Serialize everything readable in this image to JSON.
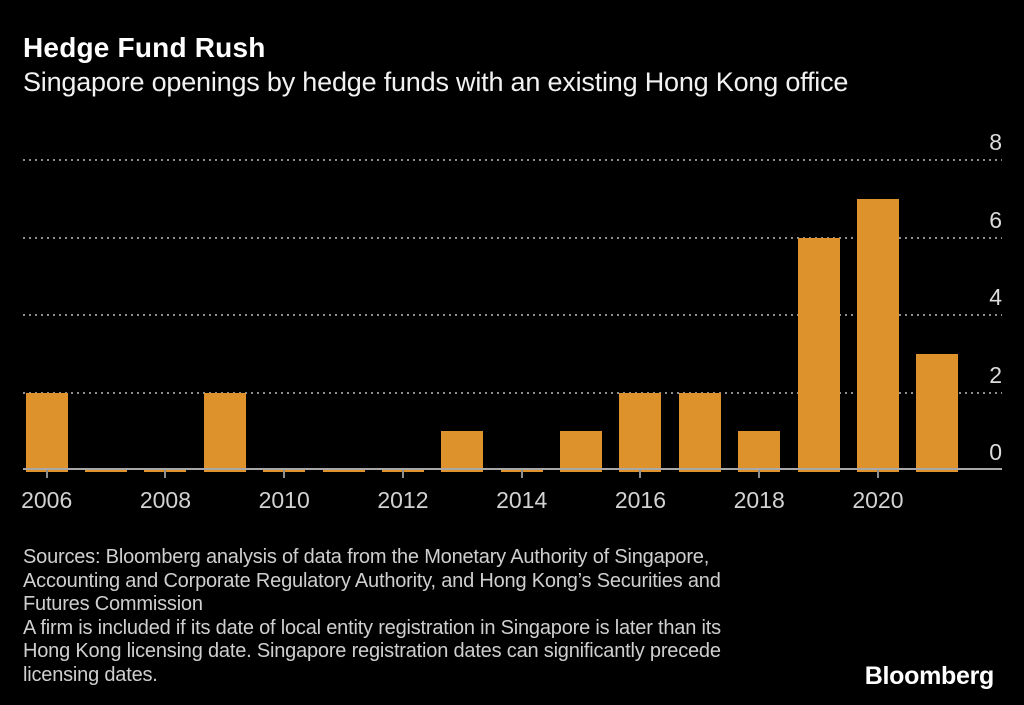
{
  "header": {
    "title": "Hedge Fund Rush",
    "subtitle": "Singapore openings by hedge funds with an existing Hong Kong office"
  },
  "chart_data": {
    "type": "bar",
    "title": "Hedge Fund Rush",
    "subtitle": "Singapore openings by hedge funds with an existing Hong Kong office",
    "x": [
      2006,
      2007,
      2008,
      2009,
      2010,
      2011,
      2012,
      2013,
      2014,
      2015,
      2016,
      2017,
      2018,
      2019,
      2020,
      2021
    ],
    "values": [
      2,
      0,
      0,
      2,
      0,
      0,
      0,
      1,
      0,
      1,
      2,
      2,
      1,
      6,
      7,
      3
    ],
    "xlabel": "",
    "ylabel": "",
    "ylim": [
      0,
      8
    ],
    "yticks": [
      0,
      2,
      4,
      6,
      8
    ],
    "xticks": [
      2006,
      2008,
      2010,
      2012,
      2014,
      2016,
      2018,
      2020
    ],
    "y_axis_side": "right",
    "grid": "horizontal-dotted",
    "legend": "none"
  },
  "colors": {
    "bar": "#DE922C",
    "background": "#000000",
    "gridline": "#8E8E8E",
    "axis_line": "#A8A8A8",
    "title_text": "#FFFFFF",
    "footer_text": "#CFCFCF"
  },
  "footer": {
    "source_lines": [
      "Sources: Bloomberg analysis of data from the Monetary Authority of Singapore,",
      "Accounting and Corporate Regulatory Authority, and Hong Kong’s Securities and",
      "Futures Commission"
    ],
    "note_lines": [
      "A firm is included if its date of local entity registration in Singapore is later than its",
      "Hong Kong licensing date. Singapore registration dates can significantly precede",
      "licensing dates."
    ],
    "logo": "Bloomberg"
  }
}
